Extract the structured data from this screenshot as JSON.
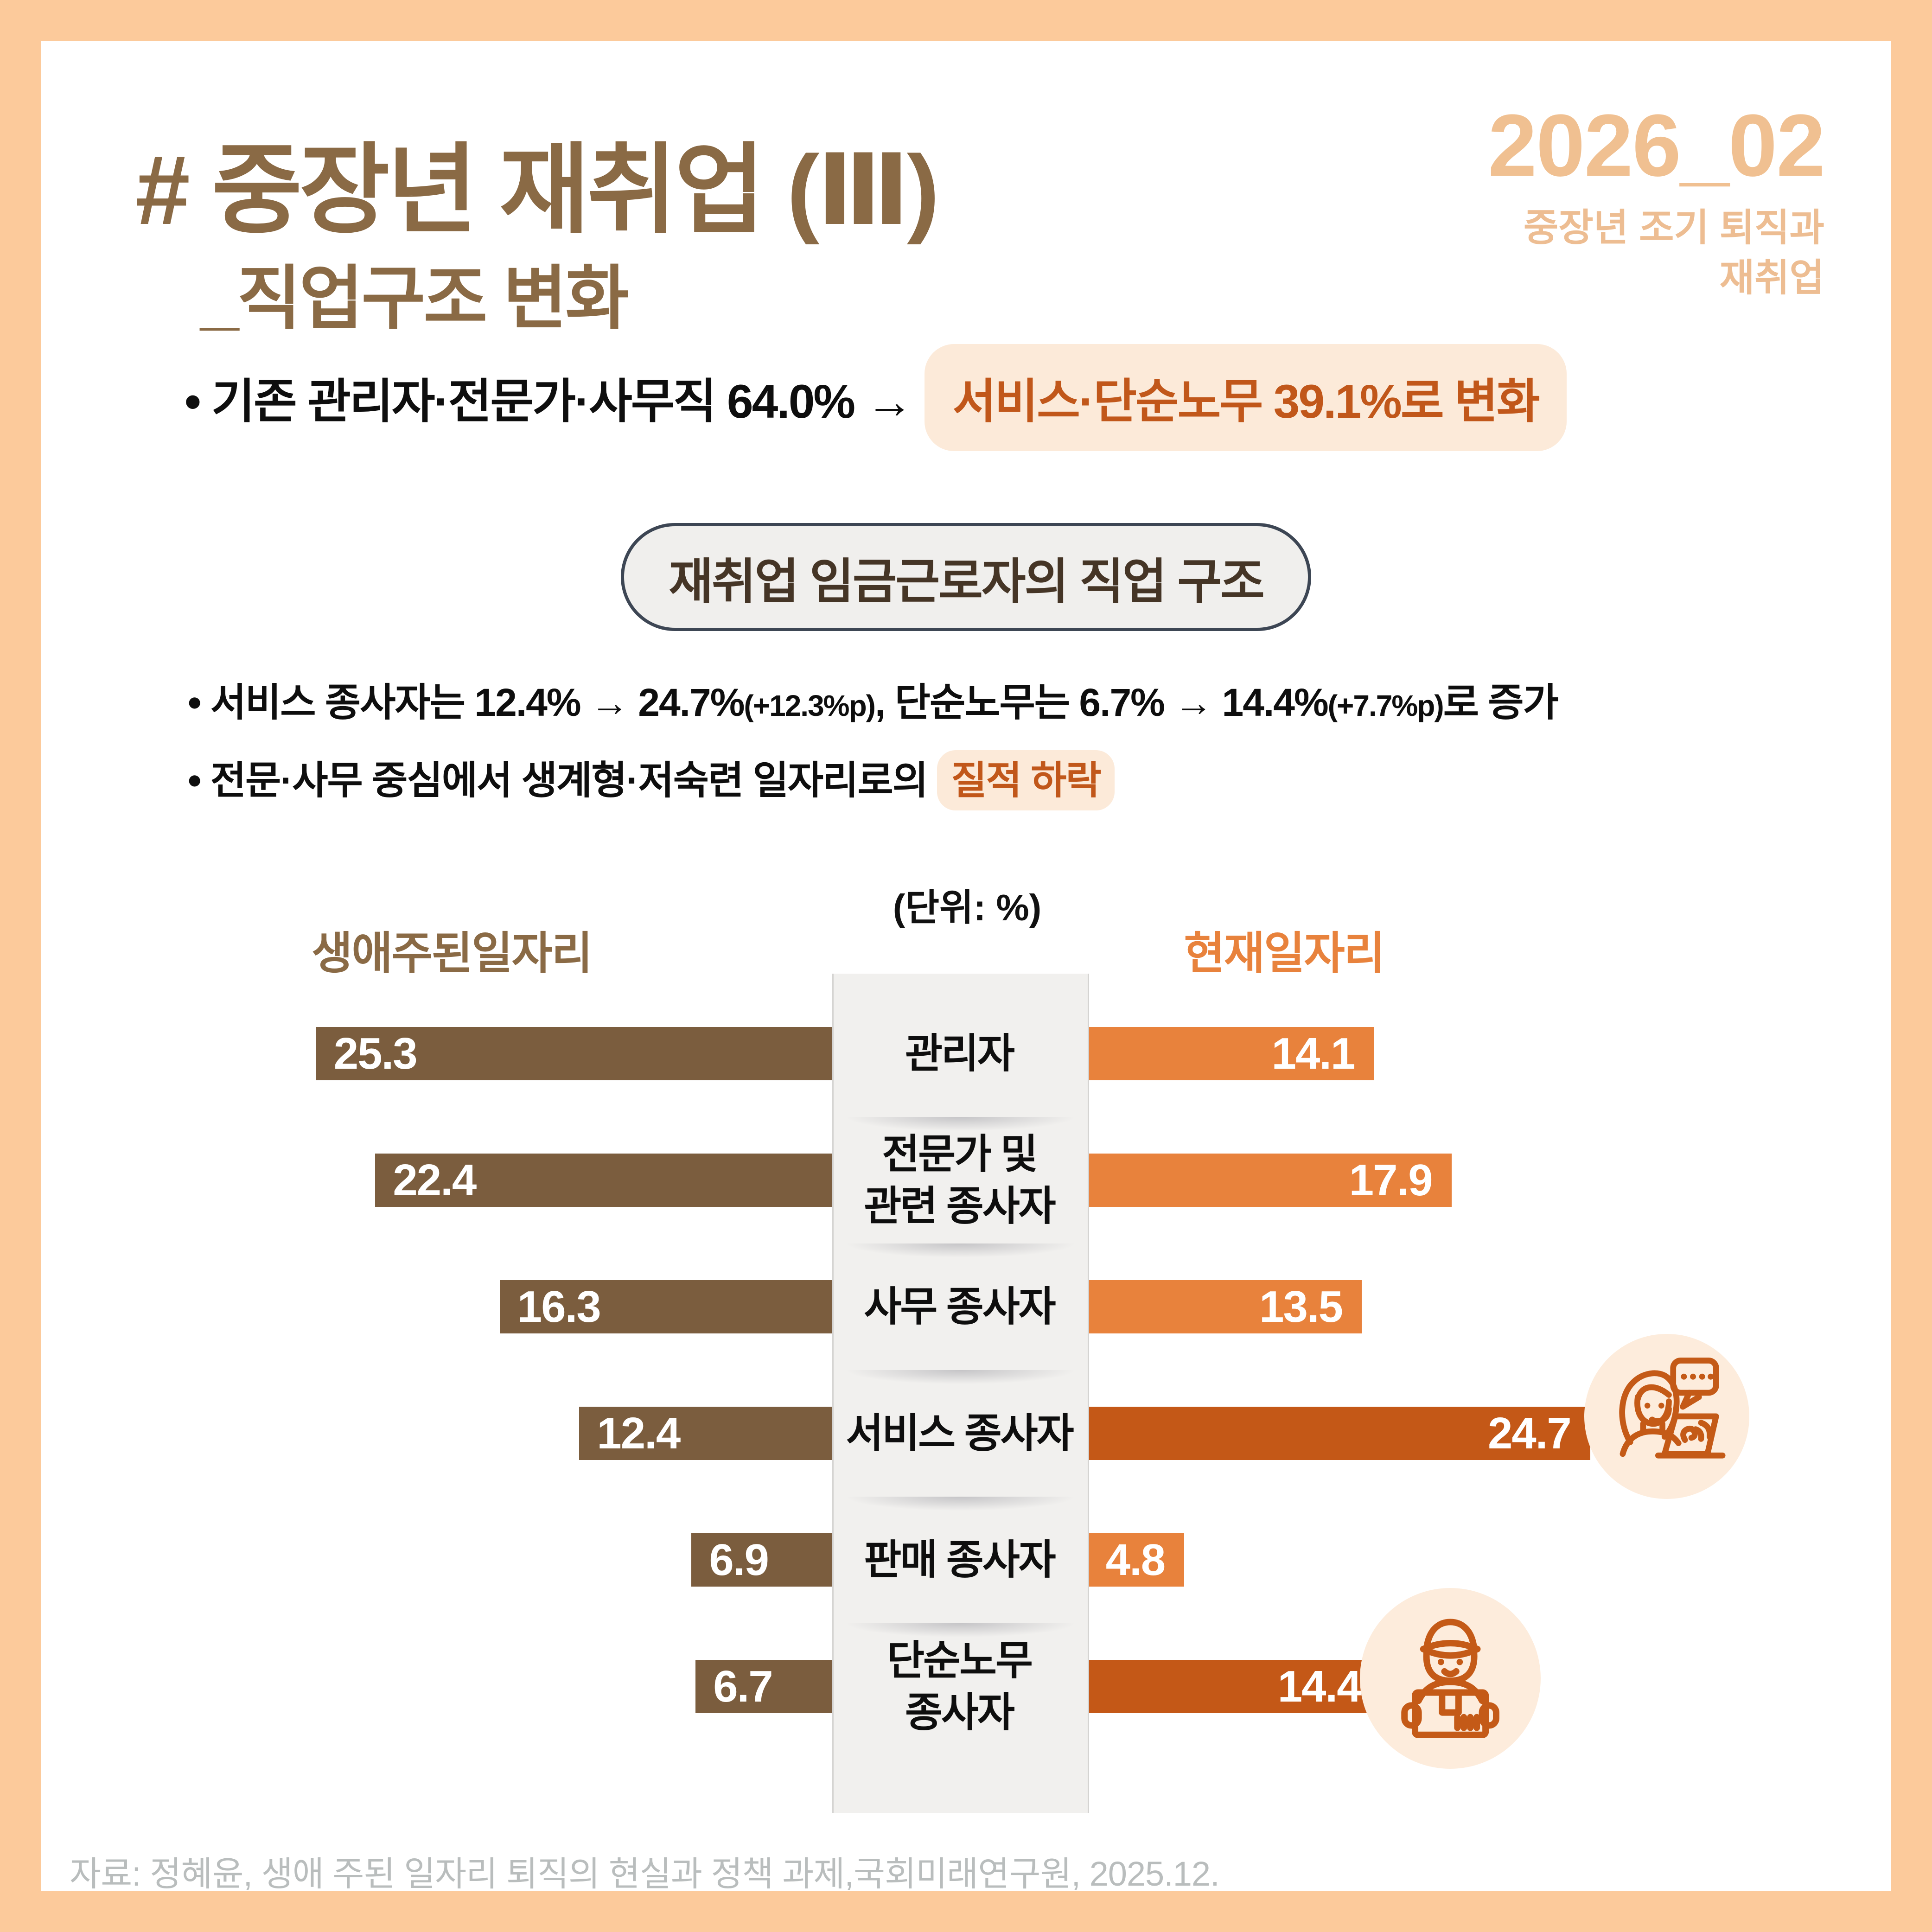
{
  "header": {
    "title": "# 중장년 재취업 (Ⅲ)",
    "subtitle": "_직업구조 변화",
    "issue_number": "2026_02",
    "issue_caption": "중장년 조기 퇴직과\n재취업"
  },
  "key_message": {
    "prefix": "•  기존 관리자·전문가·사무직 64.0% → ",
    "highlight": "서비스·단순노무 39.1%로 변화"
  },
  "section": {
    "pill_title": "재취업 임금근로자의 직업 구조",
    "bullet1_parts": {
      "p1": "• 서비스 종사자는 12.4% → 24.7%",
      "p2": "(+12.3%p)",
      "p3": ", 단순노무는 6.7% → 14.4%",
      "p4": "(+7.7%p)",
      "p5": "로 증가"
    },
    "bullet2": {
      "prefix": "• 전문·사무 중심에서 생계형·저숙련 일자리로의 ",
      "highlight": "질적 하락"
    }
  },
  "chart_data": {
    "type": "bar",
    "variant": "butterfly",
    "unit_label": "(단위: %)",
    "categories": [
      "관리자",
      "전문가 및\n관련 종사자",
      "사무 종사자",
      "서비스 종사자",
      "판매 종사자",
      "단순노무\n종사자"
    ],
    "series": [
      {
        "name": "생애주된일자리",
        "values": [
          25.3,
          22.4,
          16.3,
          12.4,
          6.9,
          6.7
        ],
        "color": "#7b5d3e"
      },
      {
        "name": "현재일자리",
        "values": [
          14.1,
          17.9,
          13.5,
          24.7,
          4.8,
          14.4
        ],
        "color": "#e8823c",
        "emphasis_color": "#c45817",
        "emphasis_rows": [
          3,
          5
        ]
      }
    ],
    "icons": [
      {
        "row": 3,
        "name": "customer-service"
      },
      {
        "row": 5,
        "name": "delivery-worker"
      }
    ],
    "xlim": [
      0,
      27
    ],
    "grid": false,
    "legend_position": "top"
  },
  "footer": {
    "source": "자료: 정혜윤, 생애 주된 일자리 퇴직의 현실과 정책 과제,국회미래연구원, 2025.12."
  },
  "colors": {
    "frame": "#fcca9b",
    "title_brown": "#8a6a45",
    "issue_tan": "#f0c091",
    "issue_tan2": "#edbd92",
    "highlight_bg": "#fcead9",
    "highlight_text": "#c1571a",
    "left_bar": "#7b5d3e",
    "right_bar": "#e8823c",
    "right_bar_emphasis": "#c45817",
    "strip_bg": "#f1f0ee",
    "pill_border": "#3d4654",
    "icon_stroke": "#c45a17",
    "icon_bg": "#fdecdc",
    "footer_gray": "#b9bdbd"
  }
}
